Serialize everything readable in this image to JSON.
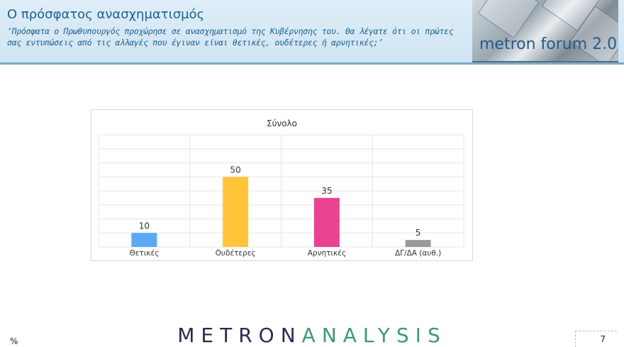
{
  "header": {
    "title": "Ο πρόσφατος ανασχηματισμός",
    "question": "‘Πρόσφατα ο Πρωθυπουργός προχώρησε σε ανασχηματισμό της Κυβέρνησης του. Θα λέγατε ότι οι πρώτες σας εντυπώσεις από τις αλλαγές που έγιναν είναι θετικές, ουδέτερες ή αρνητικές;’",
    "logo_text": "metron forum 2.0"
  },
  "chart_data": {
    "type": "bar",
    "title": "Σύνολο",
    "categories": [
      "Θετικές",
      "Ουδέτερες",
      "Αρνητικές",
      "ΔΓ/ΔΑ (αυθ.)"
    ],
    "values": [
      10,
      50,
      35,
      5
    ],
    "colors": [
      "#5aa9f5",
      "#ffc43a",
      "#ea4393",
      "#9a9a9a"
    ],
    "ylim": [
      0,
      80
    ],
    "grid": true,
    "xlabel": "",
    "ylabel": ""
  },
  "footer": {
    "brand_left": "METRON",
    "brand_right": "ANALYSIS",
    "unit": "%",
    "page": "7"
  }
}
